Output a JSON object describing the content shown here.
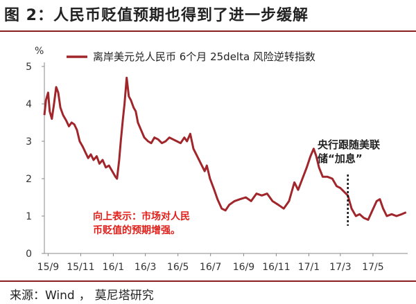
{
  "title": "图 2：人民币贬值预期也得到了进一步缓解",
  "source": {
    "label": "来源：",
    "items": [
      "Wind",
      "莫尼塔研究"
    ],
    "separator": "，"
  },
  "chart_data": {
    "type": "line",
    "y_unit_label": "%",
    "ylim": [
      0,
      5
    ],
    "y_ticks": [
      "0",
      "1",
      "2",
      "3",
      "4",
      "5"
    ],
    "x_ticks": [
      "15/9",
      "15/11",
      "16/1",
      "16/3",
      "16/5",
      "16/7",
      "16/9",
      "16/11",
      "17/1",
      "17/3",
      "17/5"
    ],
    "xlim_months": [
      "2015-08-25",
      "2017-07-05"
    ],
    "grid": false,
    "legend_position": "top",
    "series": [
      {
        "name": "离岸美元兑人民币 6个月 25delta 风险逆转指数",
        "color": "#a0262b",
        "points": [
          [
            "2015-08-25",
            3.7
          ],
          [
            "2015-08-28",
            4.1
          ],
          [
            "2015-09-01",
            4.3
          ],
          [
            "2015-09-04",
            3.8
          ],
          [
            "2015-09-08",
            3.6
          ],
          [
            "2015-09-12",
            4.0
          ],
          [
            "2015-09-16",
            4.45
          ],
          [
            "2015-09-20",
            4.3
          ],
          [
            "2015-09-24",
            3.9
          ],
          [
            "2015-09-29",
            3.7
          ],
          [
            "2015-10-05",
            3.55
          ],
          [
            "2015-10-10",
            3.4
          ],
          [
            "2015-10-15",
            3.5
          ],
          [
            "2015-10-20",
            3.45
          ],
          [
            "2015-10-25",
            3.3
          ],
          [
            "2015-10-30",
            3.0
          ],
          [
            "2015-11-05",
            2.85
          ],
          [
            "2015-11-10",
            2.7
          ],
          [
            "2015-11-15",
            2.55
          ],
          [
            "2015-11-20",
            2.65
          ],
          [
            "2015-11-25",
            2.5
          ],
          [
            "2015-12-01",
            2.6
          ],
          [
            "2015-12-06",
            2.4
          ],
          [
            "2015-12-12",
            2.5
          ],
          [
            "2015-12-18",
            2.3
          ],
          [
            "2015-12-24",
            2.35
          ],
          [
            "2015-12-30",
            2.2
          ],
          [
            "2016-01-05",
            2.05
          ],
          [
            "2016-01-08",
            2.0
          ],
          [
            "2016-01-12",
            2.5
          ],
          [
            "2016-01-15",
            3.0
          ],
          [
            "2016-01-19",
            3.6
          ],
          [
            "2016-01-22",
            4.0
          ],
          [
            "2016-01-26",
            4.7
          ],
          [
            "2016-01-30",
            4.2
          ],
          [
            "2016-02-03",
            4.1
          ],
          [
            "2016-02-08",
            3.9
          ],
          [
            "2016-02-12",
            3.8
          ],
          [
            "2016-02-16",
            3.5
          ],
          [
            "2016-02-22",
            3.3
          ],
          [
            "2016-02-28",
            3.1
          ],
          [
            "2016-03-06",
            3.0
          ],
          [
            "2016-03-12",
            2.95
          ],
          [
            "2016-03-18",
            3.1
          ],
          [
            "2016-03-25",
            3.05
          ],
          [
            "2016-04-01",
            2.95
          ],
          [
            "2016-04-08",
            3.0
          ],
          [
            "2016-04-15",
            3.1
          ],
          [
            "2016-04-22",
            3.05
          ],
          [
            "2016-04-29",
            3.0
          ],
          [
            "2016-05-06",
            2.95
          ],
          [
            "2016-05-13",
            3.1
          ],
          [
            "2016-05-18",
            3.0
          ],
          [
            "2016-05-24",
            3.2
          ],
          [
            "2016-05-30",
            2.8
          ],
          [
            "2016-06-06",
            2.6
          ],
          [
            "2016-06-13",
            2.4
          ],
          [
            "2016-06-20",
            2.2
          ],
          [
            "2016-06-24",
            2.35
          ],
          [
            "2016-06-30",
            2.0
          ],
          [
            "2016-07-08",
            1.7
          ],
          [
            "2016-07-14",
            1.45
          ],
          [
            "2016-07-22",
            1.2
          ],
          [
            "2016-07-29",
            1.15
          ],
          [
            "2016-08-05",
            1.3
          ],
          [
            "2016-08-15",
            1.4
          ],
          [
            "2016-08-25",
            1.45
          ],
          [
            "2016-09-05",
            1.5
          ],
          [
            "2016-09-15",
            1.4
          ],
          [
            "2016-09-25",
            1.6
          ],
          [
            "2016-10-05",
            1.55
          ],
          [
            "2016-10-15",
            1.6
          ],
          [
            "2016-10-25",
            1.4
          ],
          [
            "2016-11-05",
            1.3
          ],
          [
            "2016-11-15",
            1.2
          ],
          [
            "2016-11-25",
            1.4
          ],
          [
            "2016-12-05",
            1.9
          ],
          [
            "2016-12-12",
            1.7
          ],
          [
            "2016-12-20",
            2.0
          ],
          [
            "2016-12-28",
            2.3
          ],
          [
            "2017-01-04",
            2.6
          ],
          [
            "2017-01-10",
            2.8
          ],
          [
            "2017-01-15",
            2.6
          ],
          [
            "2017-01-20",
            2.3
          ],
          [
            "2017-01-27",
            2.05
          ],
          [
            "2017-02-05",
            2.05
          ],
          [
            "2017-02-14",
            2.0
          ],
          [
            "2017-02-22",
            1.8
          ],
          [
            "2017-03-01",
            1.75
          ],
          [
            "2017-03-08",
            1.65
          ],
          [
            "2017-03-15",
            1.55
          ],
          [
            "2017-03-22",
            1.2
          ],
          [
            "2017-03-30",
            1.0
          ],
          [
            "2017-04-06",
            1.05
          ],
          [
            "2017-04-14",
            0.95
          ],
          [
            "2017-04-22",
            0.9
          ],
          [
            "2017-04-30",
            1.15
          ],
          [
            "2017-05-08",
            1.4
          ],
          [
            "2017-05-14",
            1.45
          ],
          [
            "2017-05-20",
            1.2
          ],
          [
            "2017-05-27",
            1.0
          ],
          [
            "2017-06-05",
            1.05
          ],
          [
            "2017-06-14",
            1.0
          ],
          [
            "2017-06-24",
            1.05
          ],
          [
            "2017-07-02",
            1.1
          ]
        ]
      }
    ],
    "annotations": [
      {
        "text_lines": [
          "向上表示：市场对人民",
          "币贬值的预期增强。"
        ],
        "style": "red"
      },
      {
        "text_lines": [
          "央行跟随美联",
          "储“加息”"
        ],
        "style": "black",
        "marker_date": "2017-03-15"
      }
    ]
  }
}
